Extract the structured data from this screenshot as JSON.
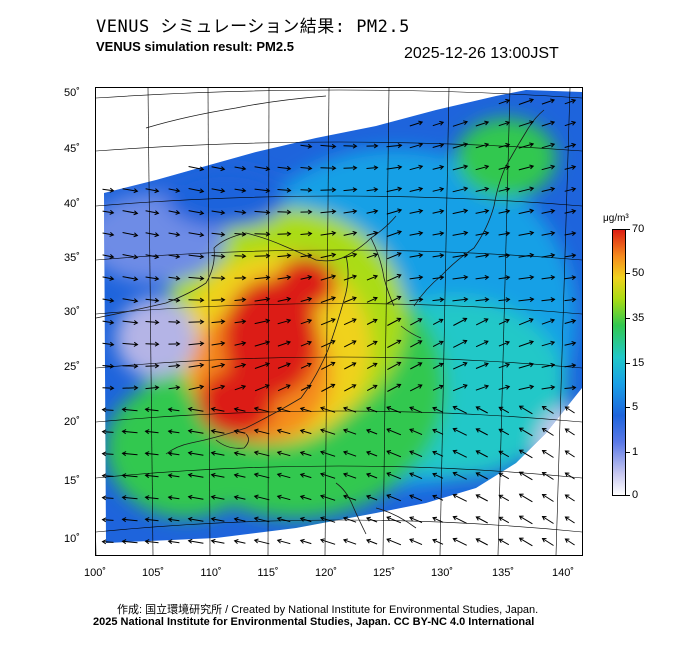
{
  "header": {
    "title_jp": "VENUS シミュレーション結果: PM2.5",
    "title_en": "VENUS simulation result: PM2.5",
    "timestamp": "2025-12-26 13:00JST"
  },
  "map": {
    "lat_labels": [
      "50˚",
      "45˚",
      "40˚",
      "35˚",
      "30˚",
      "25˚",
      "20˚",
      "15˚",
      "10˚"
    ],
    "lon_labels": [
      "100˚",
      "105˚",
      "110˚",
      "115˚",
      "120˚",
      "125˚",
      "130˚",
      "135˚",
      "140˚"
    ]
  },
  "colorbar": {
    "unit": "μg/m³",
    "labels": [
      "70",
      "50",
      "35",
      "15",
      "5",
      "1",
      "0"
    ],
    "colors": [
      "#ffffff",
      "#c8c8f0",
      "#5a78e6",
      "#1e64dc",
      "#19a0e6",
      "#20c8c8",
      "#32c850",
      "#aadc14",
      "#f0d21e",
      "#f58c1e",
      "#dc1e14"
    ]
  },
  "footer": {
    "credit": "作成: 国立環境研究所 / Created by National Institute for Environmental Studies, Japan.",
    "copyright": "2025 National Institute for Environmental Studies, Japan. CC BY-NC 4.0 International"
  }
}
